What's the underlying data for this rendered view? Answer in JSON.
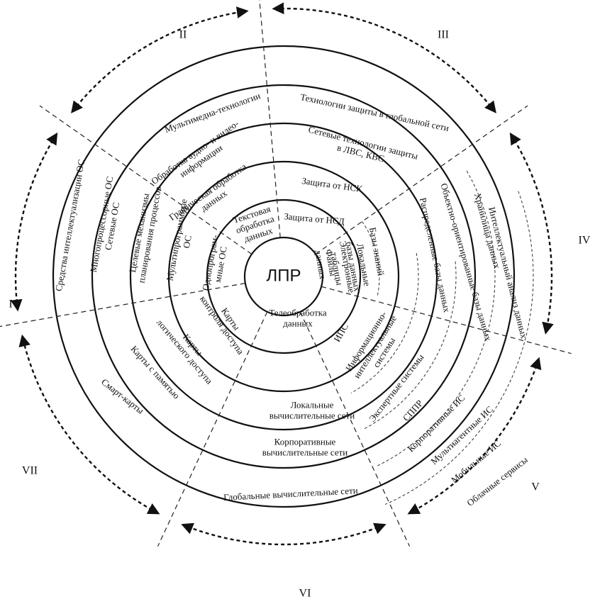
{
  "center": "ЛПР",
  "sectors": [
    "I",
    "II",
    "III",
    "IV",
    "V",
    "VI",
    "VII"
  ],
  "labels": [
    [
      "Однопрограм-",
      "мные ОС"
    ],
    [
      "Мультипрограммные",
      "ОС"
    ],
    [
      "Целевые механизмы",
      "планирования процессов"
    ],
    [
      "Многопроцессорные ОС",
      "Сетевые ОС"
    ],
    [
      "Средства интеллектуализации ОС"
    ],
    [
      "Текстовая",
      "обработка",
      "данных"
    ],
    [
      "Графическая обработка",
      "данных"
    ],
    [
      "Обработка аудио- и видео-",
      "информации"
    ],
    [
      "Мультимедиа-технологии"
    ],
    [
      "Защита от НСД"
    ],
    [
      "Защита от НСК"
    ],
    [
      "Сетевые технологии защиты",
      "в ЛВС, КВС"
    ],
    [
      "Технологии защиты в глобальной сети"
    ],
    [
      "Файлы",
      "данных"
    ],
    [
      "Электронные",
      "таблицы"
    ],
    [
      "Локальные",
      "базы данных"
    ],
    [
      "Базы знаний"
    ],
    [
      "Распределенные базы данных"
    ],
    [
      "Объектно-ориентированные базы данных"
    ],
    [
      "Хранилища данных"
    ],
    [
      "Интеллектуальный анализ данных"
    ],
    [
      "ИПС"
    ],
    [
      "Информационно-",
      "интеллектуальные",
      "системы"
    ],
    [
      "Экспертные системы"
    ],
    [
      "СППР"
    ],
    [
      "Корпоративные ИС"
    ],
    [
      "Мультиагентные ИС"
    ],
    [
      "Мобильные ИС"
    ],
    [
      "Облачные сервисы"
    ],
    [
      "Телеобработка",
      "данных"
    ],
    [
      "Локальные",
      "вычислительные сети"
    ],
    [
      "Корпоративные",
      "вычислительные сети"
    ],
    [
      "Глобальные вычислительные сети"
    ],
    [
      "Карты",
      "контроля доступа"
    ],
    [
      "Карты",
      "логического доступа"
    ],
    [
      "Карты с памятью"
    ],
    [
      "Смарт-карты"
    ]
  ]
}
